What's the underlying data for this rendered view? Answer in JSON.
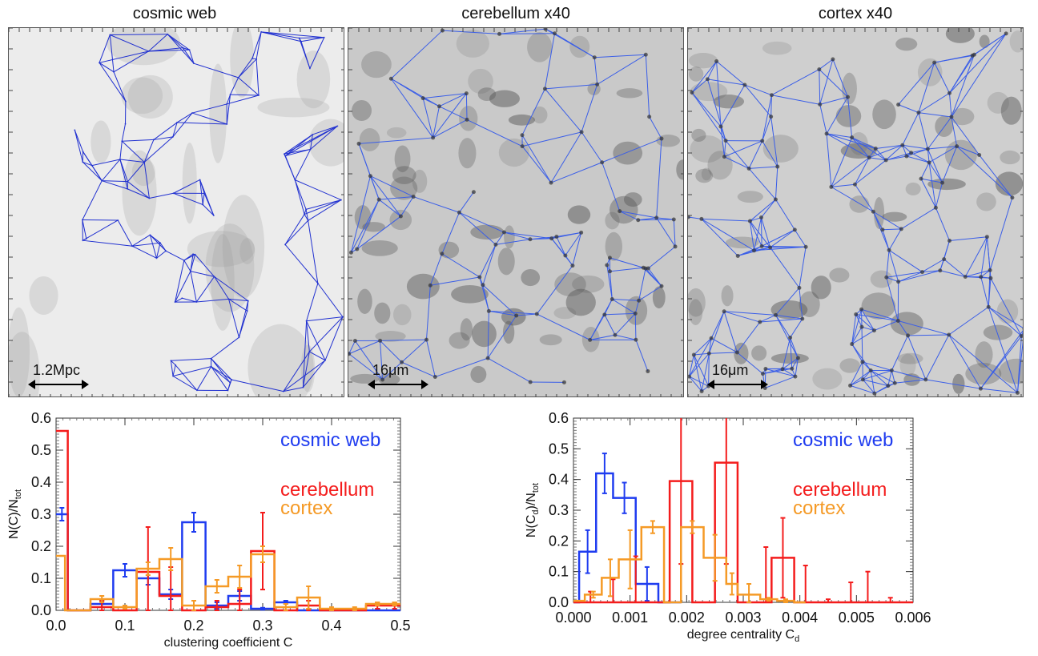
{
  "panels": [
    {
      "title": "cosmic web",
      "scale_label": "1.2Mpc",
      "background": "#ececec",
      "edge_color": "#2030d0"
    },
    {
      "title": "cerebellum x40",
      "scale_label": "16μm",
      "background": "#c9c9c9",
      "edge_color": "#3a5ee8"
    },
    {
      "title": "cortex x40",
      "scale_label": "16μm",
      "background": "#cfcfcf",
      "edge_color": "#3a5ee8"
    }
  ],
  "colors": {
    "cosmic": "#1f3cf0",
    "cerebellum": "#f41c1c",
    "cortex": "#f59a26"
  },
  "chart_data": [
    {
      "type": "bar",
      "style": "step-histogram",
      "xlabel": "clustering coefficient C",
      "ylabel": "N(C)/N",
      "ylabel_sub": "tot",
      "xlim": [
        0,
        0.5
      ],
      "ylim": [
        0,
        0.6
      ],
      "xticks": [
        "0.0",
        "0.1",
        "0.2",
        "0.3",
        "0.4",
        "0.5"
      ],
      "xtick_values": [
        0,
        0.1,
        0.2,
        0.3,
        0.4,
        0.5
      ],
      "yticks": [
        "0.0",
        "0.1",
        "0.2",
        "0.3",
        "0.4",
        "0.5",
        "0.6"
      ],
      "ytick_values": [
        0,
        0.1,
        0.2,
        0.3,
        0.4,
        0.5,
        0.6
      ],
      "legend": [
        "cosmic web",
        "cerebellum",
        "cortex"
      ],
      "legend_position": "top-right",
      "bin_edges": [
        0,
        0.0167,
        0.0333,
        0.05,
        0.0833,
        0.1167,
        0.15,
        0.1833,
        0.2167,
        0.25,
        0.2833,
        0.3167,
        0.35,
        0.3833,
        0.4167,
        0.45,
        0.4833,
        0.5
      ],
      "series": [
        {
          "name": "cosmic web",
          "color_key": "cosmic",
          "edges": [
            0,
            0.017,
            0.05,
            0.083,
            0.117,
            0.15,
            0.183,
            0.217,
            0.25,
            0.283,
            0.317,
            0.35,
            0.383,
            0.417,
            0.45,
            0.483,
            0.5
          ],
          "values": [
            0.3,
            0.0,
            0.02,
            0.125,
            0.1,
            0.05,
            0.275,
            0.015,
            0.045,
            0.005,
            0.025,
            0.0,
            0.0,
            0.0,
            0.0,
            0.0
          ],
          "errors": [
            0.02,
            0,
            0.01,
            0.02,
            0.02,
            0.015,
            0.03,
            0.01,
            0.015,
            0.003,
            0.005,
            0,
            0,
            0,
            0,
            0
          ]
        },
        {
          "name": "cerebellum",
          "color_key": "cerebellum",
          "edges": [
            0,
            0.017,
            0.05,
            0.083,
            0.117,
            0.15,
            0.183,
            0.217,
            0.25,
            0.283,
            0.317,
            0.35,
            0.383,
            0.417,
            0.45,
            0.483,
            0.5
          ],
          "values": [
            0.56,
            0.0,
            0.01,
            0.0,
            0.12,
            0.045,
            0.0,
            0.01,
            0.02,
            0.185,
            0.0,
            0.015,
            0.0,
            0.0,
            0.015,
            0.015
          ],
          "errors": [
            0.0,
            0,
            0.02,
            0,
            0.14,
            0.09,
            0,
            0.02,
            0.045,
            0.12,
            0,
            0.015,
            0,
            0,
            0.01,
            0.01
          ]
        },
        {
          "name": "cortex",
          "color_key": "cortex",
          "edges": [
            0,
            0.013,
            0.05,
            0.083,
            0.117,
            0.15,
            0.183,
            0.217,
            0.25,
            0.283,
            0.317,
            0.35,
            0.383,
            0.417,
            0.45,
            0.483,
            0.5
          ],
          "values": [
            0.17,
            0.0,
            0.035,
            0.01,
            0.13,
            0.16,
            0.015,
            0.075,
            0.105,
            0.175,
            0.01,
            0.04,
            0.005,
            0.005,
            0.02,
            0.02
          ],
          "errors": [
            0,
            0,
            0.01,
            0.005,
            0.02,
            0.035,
            0.015,
            0.02,
            0.035,
            0.025,
            0.01,
            0.035,
            0.005,
            0.005,
            0.005,
            0.005
          ]
        }
      ]
    },
    {
      "type": "bar",
      "style": "step-histogram",
      "xlabel": "degree centrality C",
      "xlabel_sub": "d",
      "ylabel": "N(C",
      "ylabel_sub1": "d",
      "ylabel_mid": ")/N",
      "ylabel_sub": "tot",
      "xlim": [
        0,
        0.006
      ],
      "ylim": [
        0,
        0.6
      ],
      "xticks": [
        "0.000",
        "0.001",
        "0.002",
        "0.003",
        "0.004",
        "0.005",
        "0.006"
      ],
      "xtick_values": [
        0,
        0.001,
        0.002,
        0.003,
        0.004,
        0.005,
        0.006
      ],
      "yticks": [
        "0.0",
        "0.1",
        "0.2",
        "0.3",
        "0.4",
        "0.5",
        "0.6"
      ],
      "ytick_values": [
        0,
        0.1,
        0.2,
        0.3,
        0.4,
        0.5,
        0.6
      ],
      "legend": [
        "cosmic web",
        "cerebellum",
        "cortex"
      ],
      "legend_position": "top-right",
      "series": [
        {
          "name": "cosmic web",
          "color_key": "cosmic",
          "edges": [
            0.0,
            0.0001,
            0.0004,
            0.0007,
            0.0011,
            0.0015,
            0.0019
          ],
          "values": [
            0.0,
            0.165,
            0.42,
            0.34,
            0.06,
            0.0
          ],
          "errors": [
            0,
            0.07,
            0.065,
            0.05,
            0.055,
            0
          ]
        },
        {
          "name": "cerebellum",
          "color_key": "cerebellum",
          "edges": [
            0.0,
            0.0017,
            0.0021,
            0.0025,
            0.0029,
            0.0035,
            0.0039,
            0.006
          ],
          "values": [
            0.0,
            0.395,
            0.0,
            0.455,
            0.0,
            0.145,
            0.0
          ],
          "errors": [
            0,
            0.27,
            0,
            0.33,
            0,
            0.13,
            0
          ],
          "upper_errors_x": [
            0.0003,
            0.0007,
            0.0011,
            0.0034,
            0.0041,
            0.0045,
            0.0049,
            0.0052,
            0.0056
          ],
          "upper_errors_y": [
            0.035,
            0.075,
            0.15,
            0.18,
            0.12,
            0.01,
            0.065,
            0.1,
            0.015
          ]
        },
        {
          "name": "cortex",
          "color_key": "cortex",
          "edges": [
            0.0,
            0.0002,
            0.0005,
            0.0008,
            0.0012,
            0.0016,
            0.0019,
            0.0023,
            0.0027,
            0.0029,
            0.0033,
            0.0036,
            0.0039,
            0.0041
          ],
          "values": [
            0.005,
            0.025,
            0.08,
            0.14,
            0.245,
            0.0,
            0.245,
            0.145,
            0.06,
            0.025,
            0.01,
            0.005,
            0.0
          ],
          "errors": [
            0,
            0.01,
            0.06,
            0.095,
            0.02,
            0,
            0.02,
            0.075,
            0.035,
            0.035,
            0.005,
            0.005,
            0
          ]
        }
      ]
    }
  ]
}
